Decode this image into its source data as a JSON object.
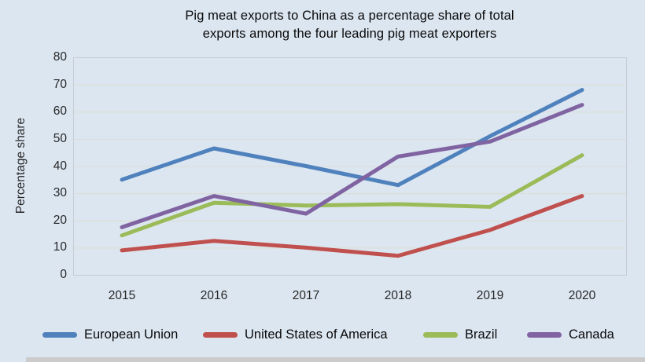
{
  "title_lines": "Pig meat exports to China as a percentage share of total\nexports among the four leading pig meat exporters",
  "chart_data": {
    "type": "line",
    "title": "Pig meat exports to China as a percentage share of total exports among the four leading pig meat exporters",
    "ylabel": "Percentage share",
    "xlabel": "",
    "categories": [
      "2015",
      "2016",
      "2017",
      "2018",
      "2019",
      "2020"
    ],
    "ylim": [
      0,
      80
    ],
    "yticks": [
      0,
      10,
      20,
      30,
      40,
      50,
      60,
      70,
      80
    ],
    "grid": true,
    "legend_position": "bottom",
    "background_color": "#dce6f1",
    "gridline_color": "#dddcd2",
    "plot_border_color": "#c6ccd6",
    "series": [
      {
        "name": "European Union",
        "color": "#4f81bd",
        "values": [
          35,
          46.5,
          40,
          33,
          51,
          68
        ]
      },
      {
        "name": "United States of America",
        "color": "#c0504d",
        "values": [
          9,
          12.5,
          10,
          7,
          16.5,
          29
        ]
      },
      {
        "name": "Brazil",
        "color": "#9bbb59",
        "values": [
          14.5,
          26.5,
          25.5,
          26,
          25,
          44
        ]
      },
      {
        "name": "Canada",
        "color": "#8064a2",
        "values": [
          17.5,
          29,
          22.5,
          43.5,
          49,
          62.5
        ]
      }
    ]
  }
}
